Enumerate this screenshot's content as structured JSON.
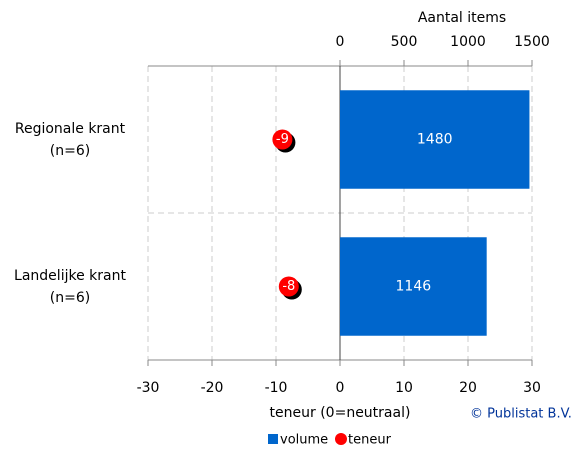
{
  "chart_data": {
    "type": "bar-dot",
    "xlabel": "teneur (0=neutraal)",
    "x2label": "Aantal items",
    "credit": "© Publistat B.V.",
    "categories": [
      "Regionale krant\n(n=6)",
      "Landelijke krant\n(n=6)"
    ],
    "series": [
      {
        "name": "volume",
        "color": "#0066cc",
        "axis": "x2",
        "values": [
          1480,
          1146
        ]
      },
      {
        "name": "teneur",
        "color": "#ff0000",
        "axis": "x",
        "values": [
          -9,
          -8
        ]
      }
    ],
    "xlim": [
      -30,
      30
    ],
    "xticks": [
      -30,
      -20,
      -10,
      0,
      10,
      20,
      30
    ],
    "x2lim": [
      -1500,
      1500
    ],
    "x2ticks": [
      0,
      500,
      1000,
      1500
    ],
    "grid": true
  }
}
